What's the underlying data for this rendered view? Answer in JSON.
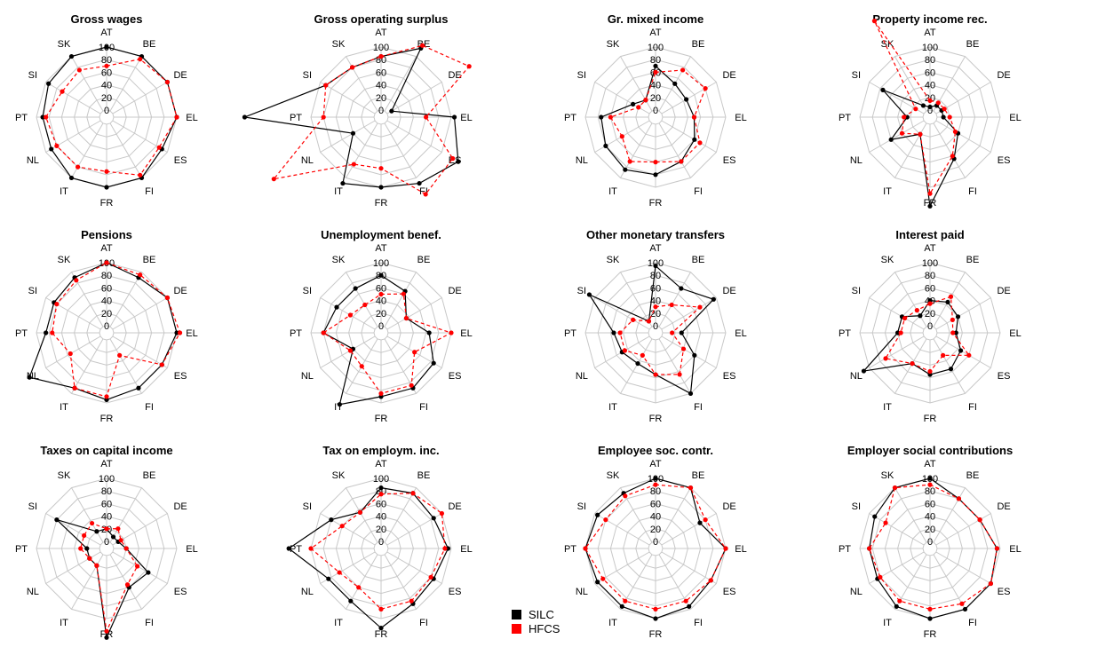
{
  "chart_data": {
    "type": "radar",
    "axis_labels": [
      "AT",
      "BE",
      "DE",
      "EL",
      "ES",
      "FI",
      "FR",
      "IT",
      "NL",
      "PT",
      "SI",
      "SK"
    ],
    "tick_labels": [
      "0",
      "20",
      "40",
      "60",
      "80",
      "100"
    ],
    "rmax": 100,
    "grid": true,
    "legend": {
      "position": "bottom-center",
      "items": [
        {
          "name": "SILC",
          "color": "#000000"
        },
        {
          "name": "HFCS",
          "color": "#ff0000"
        }
      ]
    },
    "series_styles": [
      {
        "name": "SILC",
        "color": "#000000",
        "dash": "solid"
      },
      {
        "name": "HFCS",
        "color": "#ff0000",
        "dash": "dashed"
      }
    ],
    "panels": [
      {
        "title": "Gross wages",
        "series": [
          {
            "name": "SILC",
            "values": [
              100,
              100,
              100,
              100,
              90,
              100,
              100,
              100,
              90,
              90,
              95,
              100
            ]
          },
          {
            "name": "HFCS",
            "values": [
              70,
              95,
              100,
              100,
              85,
              95,
              75,
              80,
              80,
              85,
              70,
              75
            ]
          }
        ]
      },
      {
        "title": "Gross operating surplus",
        "series": [
          {
            "name": "SILC",
            "values": [
              85,
              115,
              8,
              105,
              130,
              110,
              100,
              110,
              40,
              205,
              90,
              80
            ]
          },
          {
            "name": "HFCS",
            "values": [
              85,
              120,
              150,
              60,
              120,
              130,
              70,
              75,
              185,
              80,
              90,
              80
            ]
          }
        ]
      },
      {
        "title": "Gr. mixed income",
        "series": [
          {
            "name": "SILC",
            "values": [
              70,
              50,
              45,
              50,
              60,
              70,
              80,
              85,
              80,
              75,
              30,
              20
            ]
          },
          {
            "name": "HFCS",
            "values": [
              60,
              75,
              80,
              50,
              70,
              70,
              60,
              70,
              50,
              60,
              20,
              20
            ]
          }
        ]
      },
      {
        "title": "Property income rec.",
        "series": [
          {
            "name": "SILC",
            "values": [
              5,
              10,
              10,
              10,
              40,
              65,
              130,
              20,
              60,
              25,
              75,
              10
            ]
          },
          {
            "name": "HFCS",
            "values": [
              15,
              15,
              15,
              20,
              35,
              60,
              110,
              20,
              40,
              30,
              15,
              165
            ]
          }
        ]
      },
      {
        "title": "Pensions",
        "series": [
          {
            "name": "SILC",
            "values": [
              100,
              90,
              100,
              100,
              90,
              90,
              95,
              90,
              130,
              85,
              85,
              90
            ]
          },
          {
            "name": "HFCS",
            "values": [
              100,
              95,
              100,
              105,
              90,
              30,
              90,
              90,
              55,
              75,
              80,
              85
            ]
          }
        ]
      },
      {
        "title": "Unemployment benef.",
        "series": [
          {
            "name": "SILC",
            "values": [
              80,
              65,
              35,
              65,
              85,
              90,
              90,
              120,
              40,
              80,
              70,
              70
            ]
          },
          {
            "name": "HFCS",
            "values": [
              50,
              60,
              35,
              100,
              50,
              85,
              85,
              50,
              45,
              80,
              45,
              40
            ]
          }
        ]
      },
      {
        "title": "Other monetary transfers",
        "series": [
          {
            "name": "SILC",
            "values": [
              95,
              70,
              95,
              30,
              60,
              100,
              55,
              45,
              50,
              55,
              110,
              10
            ]
          },
          {
            "name": "HFCS",
            "values": [
              30,
              40,
              70,
              15,
              40,
              65,
              55,
              30,
              45,
              45,
              30,
              10
            ]
          }
        ]
      },
      {
        "title": "Interest paid",
        "series": [
          {
            "name": "SILC",
            "values": [
              40,
              45,
              40,
              30,
              45,
              55,
              55,
              45,
              110,
              40,
              40,
              20
            ]
          },
          {
            "name": "HFCS",
            "values": [
              35,
              55,
              30,
              25,
              60,
              30,
              50,
              45,
              70,
              35,
              35,
              30
            ]
          }
        ]
      },
      {
        "title": "Taxes on capital income",
        "series": [
          {
            "name": "SILC",
            "values": [
              20,
              10,
              10,
              20,
              65,
              60,
              130,
              20,
              20,
              20,
              80,
              20
            ]
          },
          {
            "name": "HFCS",
            "values": [
              20,
              25,
              15,
              20,
              45,
              55,
              120,
              20,
              20,
              30,
              30,
              35
            ]
          }
        ]
      },
      {
        "title": "Tax on employm. inc.",
        "series": [
          {
            "name": "SILC",
            "values": [
              85,
              90,
              85,
              95,
              85,
              90,
              115,
              85,
              85,
              135,
              80,
              55
            ]
          },
          {
            "name": "HFCS",
            "values": [
              75,
              90,
              100,
              90,
              80,
              85,
              85,
              60,
              65,
              100,
              60,
              55
            ]
          }
        ]
      },
      {
        "title": "Employee soc. contr.",
        "series": [
          {
            "name": "SILC",
            "values": [
              100,
              100,
              70,
              100,
              90,
              95,
              100,
              95,
              95,
              100,
              95,
              90
            ]
          },
          {
            "name": "HFCS",
            "values": [
              90,
              100,
              80,
              100,
              90,
              85,
              85,
              85,
              85,
              100,
              80,
              85
            ]
          }
        ]
      },
      {
        "title": "Employer social contributions",
        "series": [
          {
            "name": "SILC",
            "values": [
              100,
              80,
              80,
              95,
              100,
              100,
              100,
              95,
              85,
              85,
              90,
              100
            ]
          },
          {
            "name": "HFCS",
            "values": [
              90,
              80,
              80,
              95,
              100,
              90,
              85,
              85,
              80,
              85,
              70,
              100
            ]
          }
        ]
      }
    ]
  }
}
